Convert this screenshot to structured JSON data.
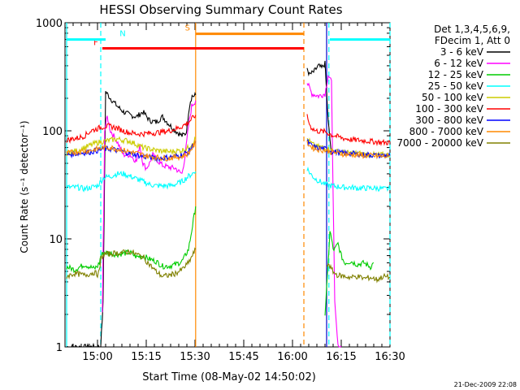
{
  "chart_data": {
    "type": "line",
    "title": "HESSI Observing Summary Count Rates",
    "xlabel": "Start Time (08-May-02 14:50:02)",
    "ylabel": "Count Rate (s⁻¹ detector⁻¹)",
    "x_unit": "minutes after 14:50:02",
    "xlim": [
      0,
      100
    ],
    "ylim": [
      1,
      1000
    ],
    "yscale": "log",
    "xticks": [
      10,
      25,
      40,
      55,
      70,
      85,
      100
    ],
    "xtick_labels": [
      "15:00",
      "15:15",
      "15:30",
      "15:45",
      "16:00",
      "16:15",
      "16:30"
    ],
    "yticks": [
      1,
      10,
      100,
      1000
    ],
    "ytick_labels": [
      "1",
      "10",
      "100",
      "1000"
    ],
    "legend_header": [
      "Det 1,3,4,5,6,9,",
      "FDecim 1, Att 0"
    ],
    "legend_placement": "right",
    "series": [
      {
        "name": "3 - 6 keV",
        "color": "#000000",
        "x": [
          0.5,
          4,
          8.5,
          10.5,
          11,
          11.7,
          12.5,
          14,
          16,
          18,
          20,
          22,
          24,
          26,
          28,
          30,
          32,
          34,
          36,
          37.2,
          37.6,
          38,
          38.6,
          39.1,
          39.8,
          40.2,
          74.5,
          75.2,
          76.5,
          78,
          79,
          80,
          81,
          82
        ],
        "y": [
          1,
          1,
          1,
          1,
          1,
          2.5,
          230,
          200,
          170,
          150,
          140,
          135,
          150,
          125,
          120,
          135,
          115,
          100,
          90,
          95,
          110,
          150,
          190,
          210,
          210,
          215,
          380,
          330,
          350,
          400,
          380,
          420,
          120,
          60
        ]
      },
      {
        "name": "6 - 12 keV",
        "color": "#ff00ff",
        "x": [
          11.5,
          12.2,
          13,
          14,
          16,
          18,
          20,
          21,
          22,
          23,
          24,
          25,
          26,
          27,
          28,
          30,
          32,
          34,
          35,
          36,
          37,
          38,
          39,
          40.2,
          74.5,
          76,
          78,
          80,
          81,
          82,
          83,
          84,
          84.6,
          85
        ],
        "y": [
          2,
          100,
          135,
          100,
          80,
          60,
          60,
          56,
          52,
          75,
          50,
          45,
          50,
          60,
          55,
          48,
          46,
          45,
          42,
          40,
          60,
          110,
          170,
          190,
          280,
          220,
          210,
          220,
          330,
          280,
          2.5,
          1,
          1,
          1
        ]
      },
      {
        "name": "12 - 25 keV",
        "color": "#00cc00",
        "x": [
          0.5,
          3,
          6,
          9,
          10,
          10.6,
          11,
          12,
          16,
          20,
          22,
          24,
          26,
          28,
          30,
          32,
          34,
          35,
          36,
          37,
          38,
          39,
          40.2,
          80,
          81,
          81.5,
          82,
          82.5,
          83,
          84,
          85,
          86,
          88,
          90,
          92,
          94,
          95
        ],
        "y": [
          5.5,
          5.2,
          5.8,
          5.3,
          5.6,
          6,
          7,
          7.5,
          7.2,
          7.5,
          6.8,
          7,
          6.5,
          6.2,
          5.6,
          5.6,
          5.8,
          6,
          6.2,
          7,
          8,
          12,
          20,
          2,
          6,
          12,
          10,
          8,
          8,
          9,
          7,
          6,
          6.2,
          5.8,
          6,
          5.5,
          6
        ]
      },
      {
        "name": "25 - 50 keV",
        "color": "#00ffff",
        "x": [
          0.5,
          2,
          4,
          6,
          8,
          10,
          11,
          12,
          14,
          16,
          18,
          20,
          22,
          24,
          26,
          28,
          30,
          32,
          34,
          36,
          38,
          40.2,
          74.5,
          75.5,
          77,
          80,
          82,
          84,
          86,
          88,
          90,
          92,
          94,
          96,
          98,
          100
        ],
        "y": [
          30,
          30,
          30,
          29,
          30,
          31,
          34,
          37,
          38,
          40,
          40,
          38,
          36,
          34,
          32,
          31,
          31,
          31,
          32,
          34,
          38,
          42,
          45,
          40,
          36,
          32,
          31,
          30.5,
          30,
          30,
          29.5,
          29.5,
          29.5,
          29.5,
          29,
          29
        ]
      },
      {
        "name": "50 - 100 keV",
        "color": "#cccc00",
        "x": [
          0.5,
          2,
          4,
          6,
          8,
          10,
          12,
          14,
          16,
          18,
          20,
          22,
          24,
          26,
          28,
          30,
          32,
          34,
          36,
          38,
          40.2,
          74.5,
          75.5,
          77,
          80,
          82,
          84,
          86,
          88,
          90,
          92,
          94,
          96,
          98,
          100
        ],
        "y": [
          62,
          64,
          66,
          70,
          74,
          78,
          80,
          82,
          84,
          82,
          80,
          75,
          70,
          68,
          66,
          65,
          64,
          65,
          66,
          70,
          85,
          85,
          78,
          72,
          70,
          66,
          64,
          63,
          62,
          62,
          61,
          60,
          60,
          60,
          60
        ]
      },
      {
        "name": "100 - 300 keV",
        "color": "#ff0000",
        "x": [
          0.5,
          2,
          4,
          6,
          8,
          10,
          12,
          14,
          16,
          18,
          20,
          22,
          24,
          26,
          28,
          30,
          32,
          34,
          36,
          38,
          40.2,
          74.5,
          75.5,
          77,
          80,
          82,
          84,
          86,
          88,
          90,
          92,
          94,
          96,
          98,
          100
        ],
        "y": [
          82,
          84,
          86,
          90,
          100,
          105,
          110,
          110,
          106,
          100,
          96,
          94,
          94,
          95,
          96,
          98,
          100,
          104,
          110,
          120,
          140,
          135,
          110,
          100,
          98,
          92,
          88,
          85,
          83,
          82,
          81,
          80,
          79,
          78,
          78
        ]
      },
      {
        "name": "300 - 800 keV",
        "color": "#0000ff",
        "x": [
          0.5,
          2,
          4,
          6,
          8,
          10,
          12,
          14,
          16,
          18,
          20,
          22,
          24,
          26,
          28,
          30,
          32,
          34,
          36,
          38,
          40.2,
          74.5,
          75.5,
          77,
          80,
          82,
          84,
          86,
          88,
          90,
          92,
          94,
          96,
          98,
          100
        ],
        "y": [
          60,
          61,
          62,
          63,
          64,
          66,
          68,
          68,
          66,
          64,
          62,
          60,
          58,
          57,
          56,
          56,
          57,
          58,
          60,
          64,
          80,
          80,
          74,
          70,
          68,
          65,
          63,
          62,
          62,
          61,
          60,
          60,
          59,
          59,
          59
        ]
      },
      {
        "name": "800 - 7000 keV",
        "color": "#ff8800",
        "x": [
          0.5,
          2,
          4,
          6,
          8,
          10,
          12,
          14,
          16,
          18,
          20,
          22,
          24,
          26,
          28,
          30,
          32,
          34,
          36,
          38,
          40.2,
          74.5,
          75.5,
          77,
          80,
          82,
          84,
          86,
          88,
          90,
          92,
          94,
          96,
          98,
          100
        ],
        "y": [
          62,
          63,
          64,
          65,
          66,
          68,
          70,
          70,
          68,
          66,
          64,
          62,
          60,
          58,
          57,
          56,
          56,
          57,
          58,
          62,
          78,
          78,
          72,
          68,
          66,
          64,
          62,
          61,
          60,
          60,
          59,
          59,
          58,
          58,
          58
        ]
      },
      {
        "name": "7000 - 20000 keV",
        "color": "#808000",
        "x": [
          0.5,
          3,
          6,
          9,
          10,
          10.6,
          11,
          12,
          16,
          20,
          22,
          24,
          26,
          28,
          30,
          32,
          34,
          36,
          38,
          40.2,
          80.5,
          81,
          82,
          83,
          84,
          86,
          88,
          90,
          92,
          94,
          96,
          98,
          100
        ],
        "y": [
          4.5,
          4.8,
          4.6,
          4.9,
          4.7,
          5,
          6.5,
          7.2,
          7.4,
          7.6,
          7.2,
          6.8,
          5.8,
          5,
          4.5,
          4.6,
          4.8,
          5.2,
          6,
          8,
          5.5,
          6,
          5.2,
          4.8,
          4.6,
          4.5,
          4.4,
          4.5,
          4.3,
          4.4,
          4.2,
          4.5,
          4.4
        ]
      }
    ],
    "flags": [
      {
        "label": "F",
        "color": "#ff0000",
        "y": 580,
        "x_start": 11.5,
        "x_end": 73.5,
        "markers": []
      },
      {
        "label": "N",
        "color": "#00ffff",
        "y": 700,
        "x_start": 0.5,
        "x_end": 100,
        "gaps": [
          [
            12.5,
            81.5
          ]
        ],
        "markers": [
          11,
          81.2,
          100
        ]
      },
      {
        "label": "S",
        "color": "#ff8800",
        "y": 790,
        "x_start": 40.2,
        "x_end": 73.5,
        "markers": [
          40.2,
          73.5
        ]
      }
    ],
    "vertical_lines": [
      {
        "x": 0.5,
        "color": "#00ffff",
        "style": "solid"
      },
      {
        "x": 11,
        "color": "#00ffff",
        "style": "dashed"
      },
      {
        "x": 40.2,
        "color": "#ff8800",
        "style": "solid"
      },
      {
        "x": 73.5,
        "color": "#ff8800",
        "style": "dashed"
      },
      {
        "x": 80.5,
        "color": "#0000cc",
        "style": "solid"
      },
      {
        "x": 81.2,
        "color": "#00ffff",
        "style": "dashed"
      },
      {
        "x": 100,
        "color": "#00ffff",
        "style": "dashed"
      }
    ],
    "timestamp": "21-Dec-2009 22:08"
  }
}
